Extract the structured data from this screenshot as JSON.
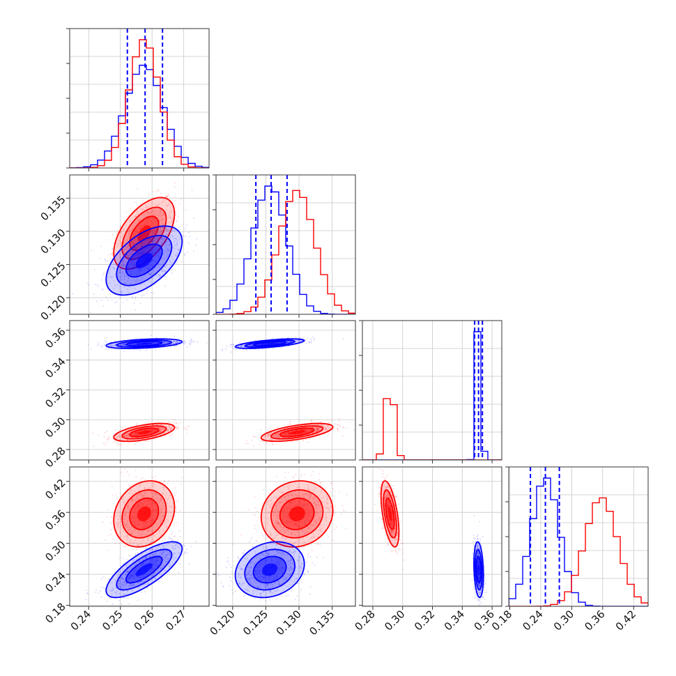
{
  "chart_data": {
    "type": "corner",
    "parameters": 4,
    "colors": {
      "red": "#ff0000",
      "blue": "#0000ff"
    },
    "grid": true,
    "ticks": [
      [
        "0.24",
        "0.25",
        "0.26",
        "0.27"
      ],
      [
        "0.120",
        "0.125",
        "0.130",
        "0.135"
      ],
      [
        "0.28",
        "0.30",
        "0.32",
        "0.34",
        "0.36"
      ],
      [
        "0.18",
        "0.24",
        "0.30",
        "0.36",
        "0.42"
      ]
    ],
    "ranges": [
      [
        0.234,
        0.278
      ],
      [
        0.1175,
        0.1385
      ],
      [
        0.273,
        0.3665
      ],
      [
        0.178,
        0.448
      ]
    ],
    "quantiles_blue": [
      [
        0.2522,
        0.2578,
        0.2633
      ],
      [
        0.1235,
        0.1258,
        0.1282
      ],
      [
        0.3483,
        0.3509,
        0.3535
      ],
      [
        0.22,
        0.249,
        0.276
      ]
    ],
    "means": {
      "red": [
        0.2575,
        0.1297,
        0.2915,
        0.357
      ],
      "blue": [
        0.2575,
        0.1256,
        0.351,
        0.249
      ]
    },
    "sigmas": {
      "red": [
        0.0048,
        0.0027,
        0.003,
        0.032
      ],
      "blue": [
        0.006,
        0.0026,
        0.0016,
        0.027
      ]
    },
    "correlations": {
      "red": {
        "0-1": 0.55,
        "0-2": 0.55,
        "0-3": 0.2,
        "1-2": 0.6,
        "1-3": 0.1,
        "2-3": -0.55
      },
      "blue": {
        "0-1": 0.55,
        "0-2": 0.4,
        "0-3": 0.75,
        "1-2": 0.65,
        "1-3": 0.2,
        "2-3": -0.2
      }
    }
  }
}
